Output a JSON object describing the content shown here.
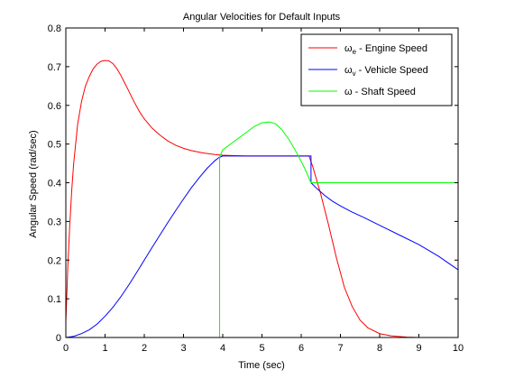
{
  "chart_data": {
    "type": "line",
    "title": "Angular Velocities for Default Inputs",
    "xlabel": "Time (sec)",
    "ylabel": "Angular Speed (rad/sec)",
    "xlim": [
      0,
      10
    ],
    "ylim": [
      0,
      0.8
    ],
    "xticks": [
      "0",
      "1",
      "2",
      "3",
      "4",
      "5",
      "6",
      "7",
      "8",
      "9",
      "10"
    ],
    "yticks": [
      "0",
      "0.1",
      "0.2",
      "0.3",
      "0.4",
      "0.5",
      "0.6",
      "0.7",
      "0.8"
    ],
    "grid": false,
    "legend_position": "top-right",
    "series": [
      {
        "name": "ωe - Engine Speed",
        "legend_symbol": "ω",
        "legend_sub": "e",
        "legend_rest": " - Engine Speed",
        "color": "#ff0000",
        "x": [
          0,
          0.05,
          0.1,
          0.15,
          0.2,
          0.3,
          0.4,
          0.5,
          0.6,
          0.7,
          0.8,
          0.9,
          1.0,
          1.1,
          1.2,
          1.3,
          1.4,
          1.5,
          1.6,
          1.7,
          1.8,
          1.9,
          2.0,
          2.2,
          2.4,
          2.6,
          2.8,
          3.0,
          3.2,
          3.5,
          3.8,
          4.0,
          4.3,
          4.6,
          5.0,
          5.5,
          6.0,
          6.2,
          6.3,
          6.5,
          6.7,
          6.9,
          7.1,
          7.3,
          7.5,
          7.7,
          8.0,
          8.3,
          8.7,
          9.0,
          9.5,
          10.0
        ],
        "y": [
          0.04,
          0.18,
          0.29,
          0.38,
          0.45,
          0.55,
          0.61,
          0.65,
          0.675,
          0.695,
          0.707,
          0.714,
          0.716,
          0.715,
          0.708,
          0.695,
          0.678,
          0.658,
          0.638,
          0.617,
          0.598,
          0.58,
          0.565,
          0.541,
          0.523,
          0.508,
          0.497,
          0.489,
          0.483,
          0.477,
          0.473,
          0.471,
          0.47,
          0.469,
          0.469,
          0.469,
          0.469,
          0.469,
          0.44,
          0.37,
          0.29,
          0.205,
          0.13,
          0.08,
          0.045,
          0.025,
          0.01,
          0.004,
          0.001,
          0.0,
          0.0,
          0.0
        ]
      },
      {
        "name": "ωv - Vehicle Speed",
        "legend_symbol": "ω",
        "legend_sub": "v",
        "legend_rest": " - Vehicle Speed",
        "color": "#0000ff",
        "x": [
          0,
          0.2,
          0.4,
          0.6,
          0.8,
          1.0,
          1.2,
          1.4,
          1.6,
          1.8,
          2.0,
          2.2,
          2.4,
          2.6,
          2.8,
          3.0,
          3.2,
          3.4,
          3.6,
          3.8,
          3.9,
          4.0,
          4.5,
          5.0,
          5.5,
          6.0,
          6.25,
          6.25,
          6.4,
          6.6,
          6.8,
          7.0,
          7.3,
          7.6,
          8.0,
          8.5,
          9.0,
          9.5,
          10.0
        ],
        "y": [
          0.0,
          0.003,
          0.01,
          0.02,
          0.035,
          0.055,
          0.078,
          0.105,
          0.135,
          0.167,
          0.2,
          0.233,
          0.265,
          0.297,
          0.328,
          0.358,
          0.387,
          0.413,
          0.437,
          0.457,
          0.465,
          0.469,
          0.469,
          0.469,
          0.469,
          0.469,
          0.469,
          0.4,
          0.385,
          0.367,
          0.352,
          0.34,
          0.324,
          0.31,
          0.29,
          0.265,
          0.24,
          0.21,
          0.175
        ]
      },
      {
        "name": "ω - Shaft Speed",
        "legend_symbol": "ω",
        "legend_sub": "",
        "legend_rest": " - Shaft Speed",
        "color": "#00ff00",
        "x": [
          3.92,
          3.92,
          4.0,
          4.2,
          4.4,
          4.6,
          4.8,
          5.0,
          5.2,
          5.35,
          5.5,
          5.7,
          5.9,
          6.1,
          6.25,
          6.3,
          6.5,
          7.0,
          8.0,
          9.0,
          10.0
        ],
        "y": [
          0.0,
          0.467,
          0.485,
          0.5,
          0.515,
          0.53,
          0.545,
          0.555,
          0.557,
          0.552,
          0.538,
          0.51,
          0.475,
          0.435,
          0.4,
          0.4,
          0.4,
          0.4,
          0.4,
          0.4,
          0.4
        ]
      }
    ]
  }
}
